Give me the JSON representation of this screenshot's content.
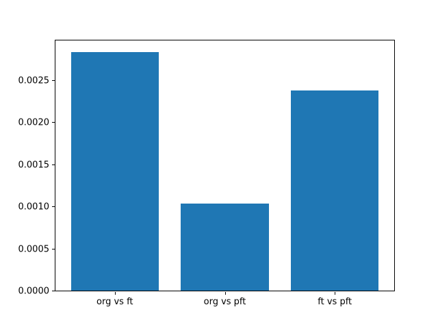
{
  "chart_data": {
    "type": "bar",
    "title": "",
    "xlabel": "",
    "ylabel": "",
    "categories": [
      "org vs ft",
      "org vs pft",
      "ft vs pft"
    ],
    "values": [
      0.00283,
      0.00103,
      0.00238
    ],
    "ylim": [
      0,
      0.00297
    ],
    "xlim": [
      -0.54,
      2.54
    ],
    "yticks": [
      0.0,
      0.0005,
      0.001,
      0.0015,
      0.002,
      0.0025
    ],
    "ytick_decimals": 4,
    "bar_width_units": 0.8,
    "grid": false,
    "legend_position": "none",
    "bar_color": "#1f77b4",
    "axis_color": "#000000",
    "background_color": "#ffffff"
  }
}
